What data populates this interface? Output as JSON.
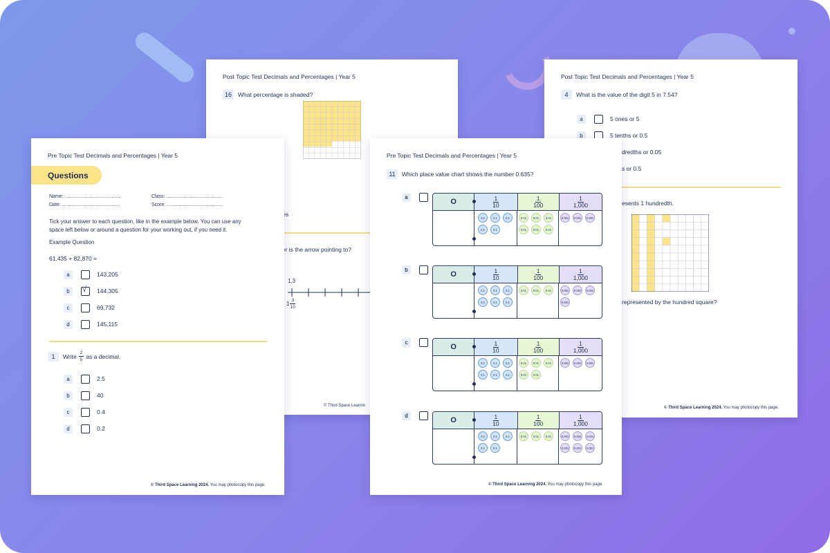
{
  "sheet_post_left": {
    "header": "Post Topic Test Decimals and Percentages | Year 5",
    "q16_num": "16",
    "q16_text": "What percentage is shaded?",
    "partial_squares": "uares",
    "partial_question": "mber is the arrow pointing to?",
    "numberline_label_top": "1.3",
    "numberline_whole": "1",
    "numberline_num": "3",
    "numberline_den": "10",
    "footer": "© Third Space Learnin"
  },
  "sheet_post_right": {
    "header": "Post Topic Test Decimals and Percentages | Year 5",
    "q4_num": "4",
    "q4_text": "What is the value of the digit 5 in 7.54?",
    "options": [
      {
        "letter": "a",
        "text": "5 ones or 5"
      },
      {
        "letter": "b",
        "text": "5 tenths or 0.5"
      },
      {
        "letter": "",
        "text": "dredths or 0.05"
      },
      {
        "letter": "",
        "text": "s or 0.5"
      }
    ],
    "partial_text1": "esents 1 hundredth.",
    "partial_text2": "represented by the hundred square?",
    "footer_bold": "© Third Space Learning 2024.",
    "footer_rest": " You may photocopy this page."
  },
  "sheet_pre_left": {
    "header": "Pre Topic Test Decimals and Percentages | Year 5",
    "section_title": "Questions",
    "name_label": "Name: ..........................................",
    "class_label": "Class: ..........................................",
    "date_label": "Date: ...........................................",
    "score_label": "Score: ..........................................",
    "instructions": "Tick your answer to each question, like in the example below. You can use any space left below or around a question for your working out, if you need it.",
    "example_label": "Example Question",
    "example_sum": "61,435 + 82,870 =",
    "example_options": [
      {
        "letter": "a",
        "text": "143,205",
        "ticked": false
      },
      {
        "letter": "b",
        "text": "144,305",
        "ticked": true
      },
      {
        "letter": "c",
        "text": "69,732",
        "ticked": false
      },
      {
        "letter": "d",
        "text": "145,115",
        "ticked": false
      }
    ],
    "tick_mark": "√",
    "q1_num": "1",
    "q1_pre": "Write",
    "q1_num_frac": "2",
    "q1_den_frac": "5",
    "q1_post": "as a decimal.",
    "q1_options": [
      {
        "letter": "a",
        "text": "2.5"
      },
      {
        "letter": "b",
        "text": "40"
      },
      {
        "letter": "c",
        "text": "0.4"
      },
      {
        "letter": "d",
        "text": "0.2"
      }
    ],
    "footer_bold": "© Third Space Learning 2024.",
    "footer_rest": " You may photocopy this page."
  },
  "sheet_pre_mid": {
    "header": "Pre Topic Test Decimals and Percentages | Year 5",
    "q11_num": "11",
    "q11_text": "Which place value chart shows the number 0.635?",
    "col_ones": "O",
    "col_tenths_num": "1",
    "col_tenths_den": "10",
    "col_hundredths_num": "1",
    "col_hundredths_den": "100",
    "col_thousandths_num": "1",
    "col_thousandths_den": "1,000",
    "counter_tenth": "0.1",
    "counter_hundredth": "0.01",
    "counter_thousandth": "0.001",
    "charts": [
      {
        "letter": "a",
        "tenths": 5,
        "hundredths": 6,
        "thousandths": 3
      },
      {
        "letter": "b",
        "tenths": 6,
        "hundredths": 3,
        "thousandths": 4
      },
      {
        "letter": "c",
        "tenths": 6,
        "hundredths": 5,
        "thousandths": 3
      },
      {
        "letter": "d",
        "tenths": 5,
        "hundredths": 3,
        "thousandths": 6
      }
    ],
    "footer_bold": "© Third Space Learning 2024.",
    "footer_rest": " You may photocopy this page."
  },
  "colors": {
    "background_start": "#7f98ea",
    "background_end": "#8e6ce6",
    "accent_yellow": "#fbe38a",
    "ink": "#1f2d55"
  }
}
